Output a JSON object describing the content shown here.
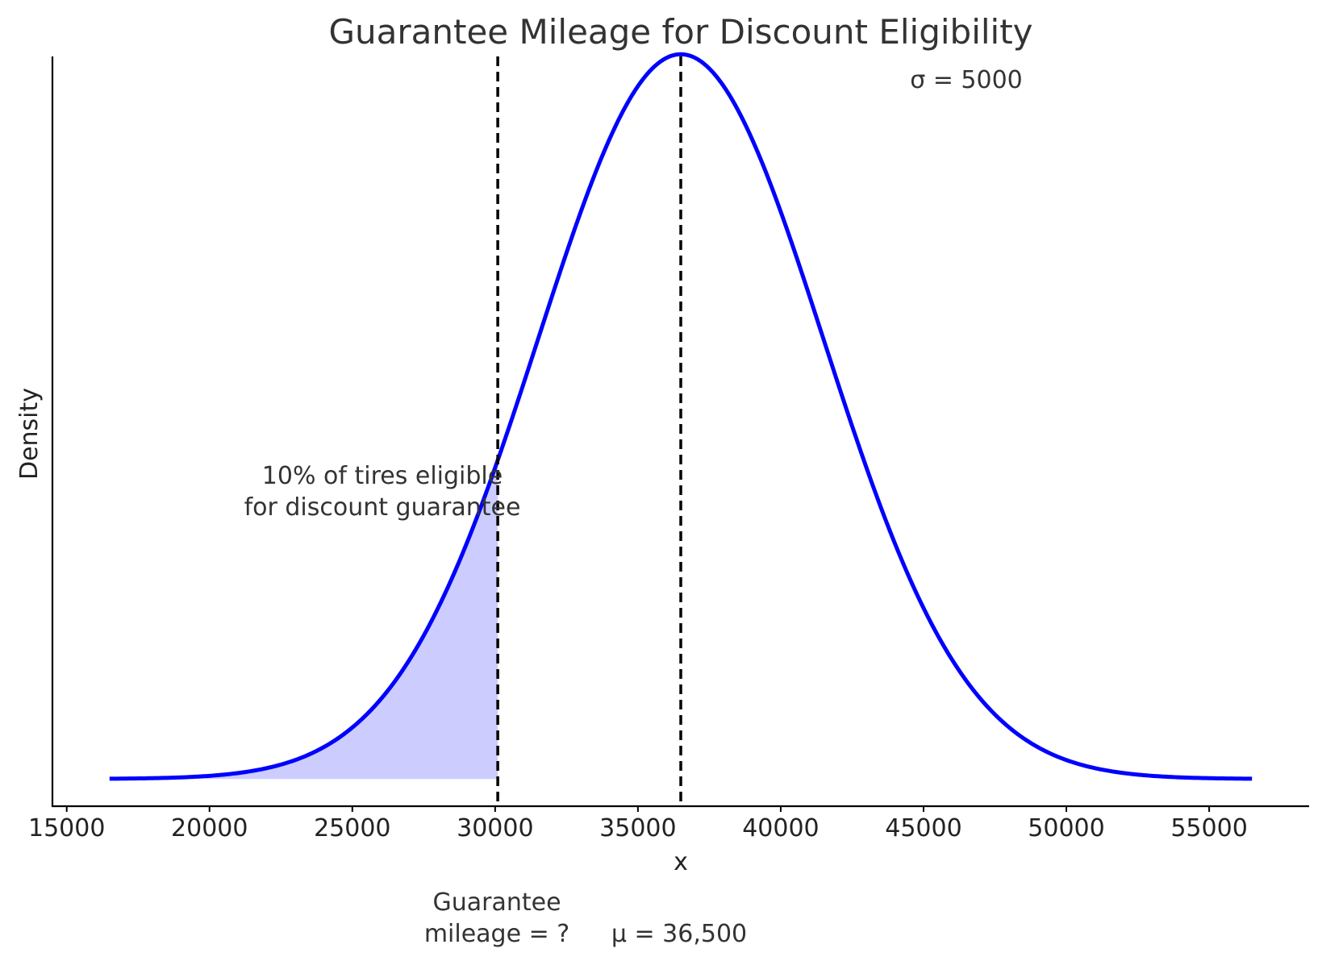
{
  "chart_data": {
    "type": "area",
    "title": "Guarantee Mileage for Discount Eligibility",
    "xlabel": "x",
    "ylabel": "Density",
    "xlim": [
      14500,
      58500
    ],
    "ylim": [
      -3e-06,
      8.15e-05
    ],
    "x_ticks": [
      15000,
      20000,
      25000,
      30000,
      35000,
      40000,
      45000,
      50000,
      55000
    ],
    "x_tick_labels": [
      "15000",
      "20000",
      "25000",
      "30000",
      "35000",
      "40000",
      "45000",
      "50000",
      "55000"
    ],
    "y_ticks_shown": false,
    "grid": false,
    "distribution": {
      "kind": "normal",
      "mean": 36500,
      "std": 5000,
      "x_range": [
        16500,
        56500
      ],
      "line_color": "#0000ff"
    },
    "shaded_region": {
      "x_range": [
        16500,
        30092
      ],
      "fill_color": "#ccccff"
    },
    "vlines": [
      {
        "x": 30092,
        "style": "dashed",
        "color": "#000000"
      },
      {
        "x": 36500,
        "style": "dashed",
        "color": "#000000"
      }
    ],
    "annotations": {
      "sigma": "σ = 5000",
      "region_line1": "10% of tires eligible",
      "region_line2": "for discount guarantee",
      "guarantee_line1": "Guarantee",
      "guarantee_line2": "mileage = ?",
      "mu": "μ = 36,500"
    }
  }
}
